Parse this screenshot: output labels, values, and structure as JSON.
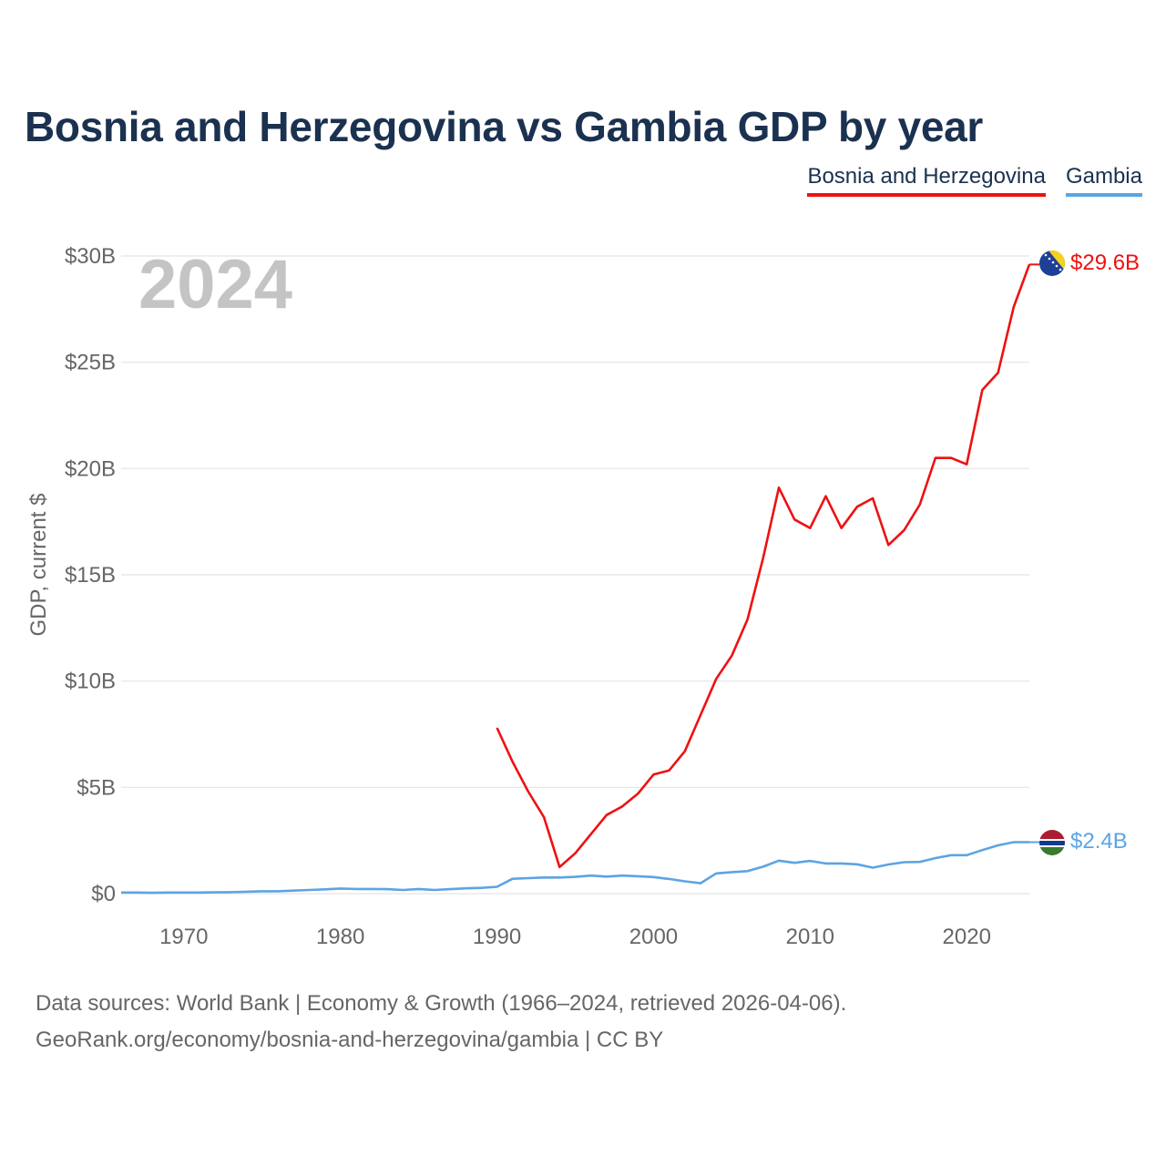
{
  "title": "Bosnia and Herzegovina vs Gambia GDP by year",
  "legend": [
    {
      "label": "Bosnia and Herzegovina",
      "color": "#ee1111"
    },
    {
      "label": "Gambia",
      "color": "#5ca4e4"
    }
  ],
  "year_label": "2024",
  "source_line1": "Data sources: World Bank | Economy & Growth (1966–2024, retrieved 2026-04-06).",
  "source_line2": "GeoRank.org/economy/bosnia-and-herzegovina/gambia | CC BY",
  "chart_data": {
    "type": "line",
    "title": "Bosnia and Herzegovina vs Gambia GDP by year",
    "xlabel": "",
    "ylabel": "GDP, current $",
    "xlim": [
      1966,
      2024
    ],
    "ylim": [
      0,
      30
    ],
    "y_unit": "billions USD",
    "x_ticks": [
      1970,
      1980,
      1990,
      2000,
      2010,
      2020
    ],
    "y_ticks": [
      0,
      5,
      10,
      15,
      20,
      25,
      30
    ],
    "y_tick_labels": [
      "$0",
      "$5B",
      "$10B",
      "$15B",
      "$20B",
      "$25B",
      "$30B"
    ],
    "grid": true,
    "legend_position": "top-right",
    "series": [
      {
        "name": "Bosnia and Herzegovina",
        "color": "#ee1111",
        "end_label": "$29.6B",
        "x": [
          1990,
          1991,
          1992,
          1993,
          1994,
          1995,
          1996,
          1997,
          1998,
          1999,
          2000,
          2001,
          2002,
          2003,
          2004,
          2005,
          2006,
          2007,
          2008,
          2009,
          2010,
          2011,
          2012,
          2013,
          2014,
          2015,
          2016,
          2017,
          2018,
          2019,
          2020,
          2021,
          2022,
          2023,
          2024
        ],
        "values": [
          7.8,
          6.2,
          4.8,
          3.6,
          1.25,
          1.9,
          2.8,
          3.7,
          4.1,
          4.7,
          5.6,
          5.8,
          6.7,
          8.4,
          10.1,
          11.2,
          12.9,
          15.8,
          19.1,
          17.6,
          17.2,
          18.7,
          17.2,
          18.2,
          18.6,
          16.4,
          17.1,
          18.3,
          20.5,
          20.5,
          20.2,
          23.7,
          24.5,
          27.6,
          29.6
        ]
      },
      {
        "name": "Gambia",
        "color": "#5ca4e4",
        "end_label": "$2.4B",
        "x": [
          1966,
          1967,
          1968,
          1969,
          1970,
          1971,
          1972,
          1973,
          1974,
          1975,
          1976,
          1977,
          1978,
          1979,
          1980,
          1981,
          1982,
          1983,
          1984,
          1985,
          1986,
          1987,
          1988,
          1989,
          1990,
          1991,
          1992,
          1993,
          1994,
          1995,
          1996,
          1997,
          1998,
          1999,
          2000,
          2001,
          2002,
          2003,
          2004,
          2005,
          2006,
          2007,
          2008,
          2009,
          2010,
          2011,
          2012,
          2013,
          2014,
          2015,
          2016,
          2017,
          2018,
          2019,
          2020,
          2021,
          2022,
          2023,
          2024
        ],
        "values": [
          0.05,
          0.05,
          0.04,
          0.05,
          0.05,
          0.05,
          0.06,
          0.07,
          0.09,
          0.11,
          0.11,
          0.14,
          0.17,
          0.2,
          0.24,
          0.22,
          0.22,
          0.21,
          0.17,
          0.22,
          0.17,
          0.21,
          0.25,
          0.27,
          0.32,
          0.7,
          0.73,
          0.76,
          0.76,
          0.79,
          0.85,
          0.8,
          0.85,
          0.82,
          0.78,
          0.69,
          0.58,
          0.49,
          0.95,
          1.01,
          1.06,
          1.27,
          1.55,
          1.45,
          1.54,
          1.42,
          1.42,
          1.38,
          1.22,
          1.37,
          1.48,
          1.49,
          1.67,
          1.81,
          1.81,
          2.05,
          2.27,
          2.42,
          2.42
        ]
      }
    ]
  }
}
